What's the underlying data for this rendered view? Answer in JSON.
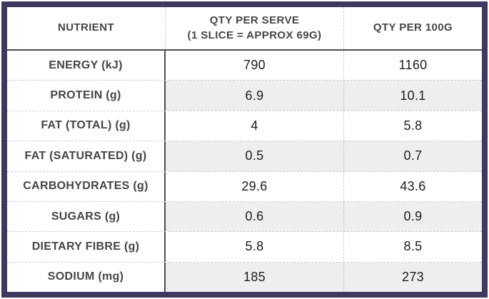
{
  "table": {
    "columns": [
      {
        "label": "NUTRIENT"
      },
      {
        "label": "QTY PER SERVE",
        "sublabel": "(1 SLICE = APPROX 69G)"
      },
      {
        "label": "QTY PER 100G"
      }
    ],
    "rows": [
      {
        "label": "ENERGY (kJ)",
        "per_serve": "790",
        "per_100g": "1160"
      },
      {
        "label": "PROTEIN (g)",
        "per_serve": "6.9",
        "per_100g": "10.1"
      },
      {
        "label": "FAT (TOTAL) (g)",
        "per_serve": "4",
        "per_100g": "5.8"
      },
      {
        "label": "FAT (SATURATED) (g)",
        "per_serve": "0.5",
        "per_100g": "0.7"
      },
      {
        "label": "CARBOHYDRATES (g)",
        "per_serve": "29.6",
        "per_100g": "43.6"
      },
      {
        "label": "SUGARS (g)",
        "per_serve": "0.6",
        "per_100g": "0.9"
      },
      {
        "label": "DIETARY FIBRE (g)",
        "per_serve": "5.8",
        "per_100g": "8.5"
      },
      {
        "label": "SODIUM (mg)",
        "per_serve": "185",
        "per_100g": "273"
      }
    ]
  },
  "colors": {
    "border_purple": "#3E395F",
    "line_dark": "#4D4D4D",
    "line_dotted": "#CCCCCC",
    "row_alt_bg": "#EEEEEE",
    "label_text": "#454545",
    "value_text": "#1D1D1D"
  }
}
